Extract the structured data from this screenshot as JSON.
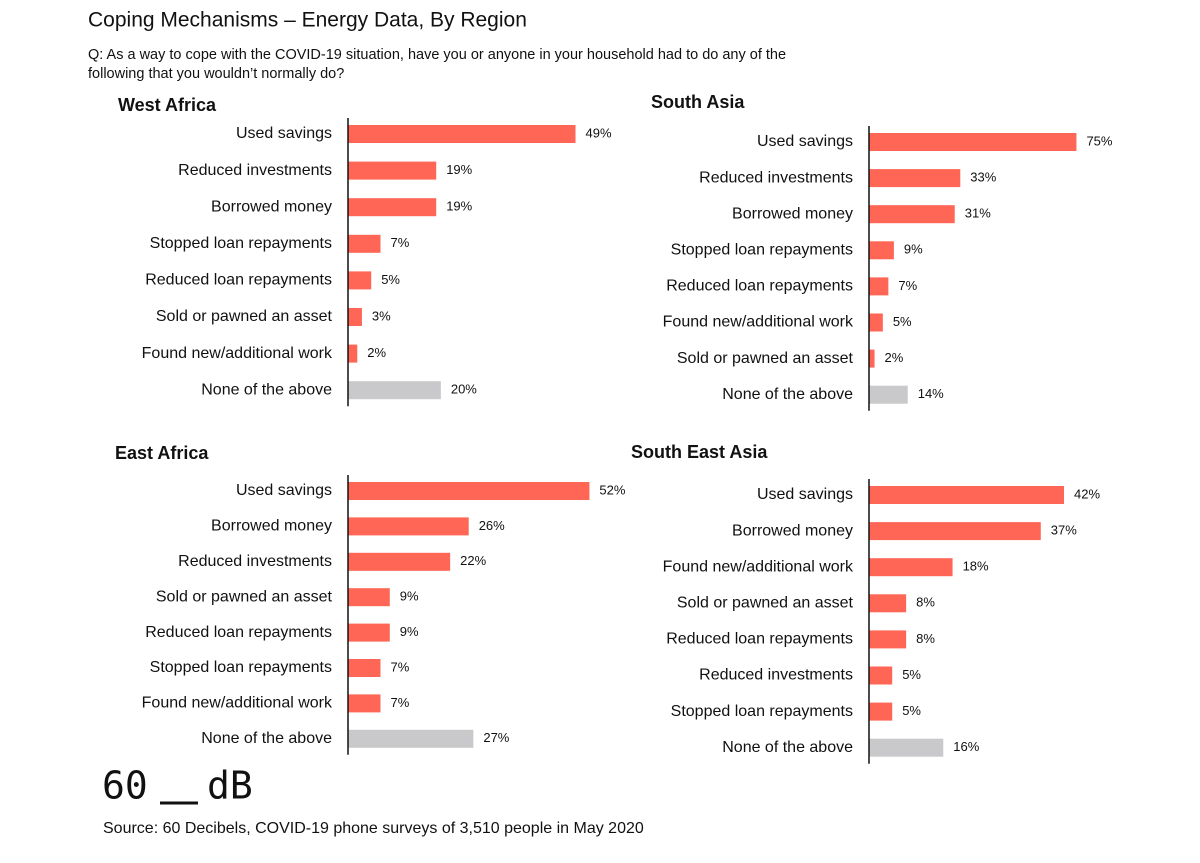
{
  "header": {
    "title": "Coping Mechanisms – Energy Data, By Region",
    "subtitle_lines": [
      "Q: As a way to cope with the COVID-19 situation, have you or anyone in your household had to do any of the",
      "following that you wouldn’t normally do?"
    ]
  },
  "chart_data": [
    {
      "type": "bar",
      "orientation": "horizontal",
      "title": "West Africa",
      "categories": [
        "Used savings",
        "Reduced investments",
        "Borrowed money",
        "Stopped loan repayments",
        "Reduced loan repayments",
        "Sold or pawned an asset",
        "Found new/additional work",
        "None of the above"
      ],
      "values": [
        49,
        19,
        19,
        7,
        5,
        3,
        2,
        20
      ],
      "value_labels": [
        "49%",
        "19%",
        "19%",
        "7%",
        "5%",
        "3%",
        "2%",
        "20%"
      ],
      "colors": [
        "#ff6655",
        "#ff6655",
        "#ff6655",
        "#ff6655",
        "#ff6655",
        "#ff6655",
        "#ff6655",
        "#c9c9cb"
      ],
      "xlim": [
        0,
        56
      ]
    },
    {
      "type": "bar",
      "orientation": "horizontal",
      "title": "South Asia",
      "categories": [
        "Used savings",
        "Reduced investments",
        "Borrowed money",
        "Stopped loan repayments",
        "Reduced loan repayments",
        "Found new/additional work",
        "Sold or pawned an asset",
        "None of the above"
      ],
      "values": [
        75,
        33,
        31,
        9,
        7,
        5,
        2,
        14
      ],
      "value_labels": [
        "75%",
        "33%",
        "31%",
        "9%",
        "7%",
        "5%",
        "2%",
        "14%"
      ],
      "colors": [
        "#ff6655",
        "#ff6655",
        "#ff6655",
        "#ff6655",
        "#ff6655",
        "#ff6655",
        "#ff6655",
        "#c9c9cb"
      ],
      "xlim": [
        0,
        94
      ]
    },
    {
      "type": "bar",
      "orientation": "horizontal",
      "title": "East Africa",
      "categories": [
        "Used savings",
        "Borrowed money",
        "Reduced investments",
        "Sold or pawned an asset",
        "Reduced loan repayments",
        "Stopped loan repayments",
        "Found new/additional work",
        "None of the above"
      ],
      "values": [
        52,
        26,
        22,
        9,
        9,
        7,
        7,
        27
      ],
      "value_labels": [
        "52%",
        "26%",
        "22%",
        "9%",
        "9%",
        "7%",
        "7%",
        "27%"
      ],
      "colors": [
        "#ff6655",
        "#ff6655",
        "#ff6655",
        "#ff6655",
        "#ff6655",
        "#ff6655",
        "#ff6655",
        "#c9c9cb"
      ],
      "xlim": [
        0,
        56
      ]
    },
    {
      "type": "bar",
      "orientation": "horizontal",
      "title": "South East Asia",
      "categories": [
        "Used savings",
        "Borrowed money",
        "Found new/additional work",
        "Sold or pawned an asset",
        "Reduced loan repayments",
        "Reduced investments",
        "Stopped loan repayments",
        "None of the above"
      ],
      "values": [
        42,
        37,
        18,
        8,
        8,
        5,
        5,
        16
      ],
      "value_labels": [
        "42%",
        "37%",
        "18%",
        "8%",
        "8%",
        "5%",
        "5%",
        "16%"
      ],
      "colors": [
        "#ff6655",
        "#ff6655",
        "#ff6655",
        "#ff6655",
        "#ff6655",
        "#ff6655",
        "#ff6655",
        "#c9c9cb"
      ],
      "xlim": [
        0,
        56
      ]
    }
  ],
  "logo": {
    "left": "60",
    "right": "dB"
  },
  "source": "Source: 60 Decibels, COVID-19 phone surveys of 3,510 people in May 2020"
}
